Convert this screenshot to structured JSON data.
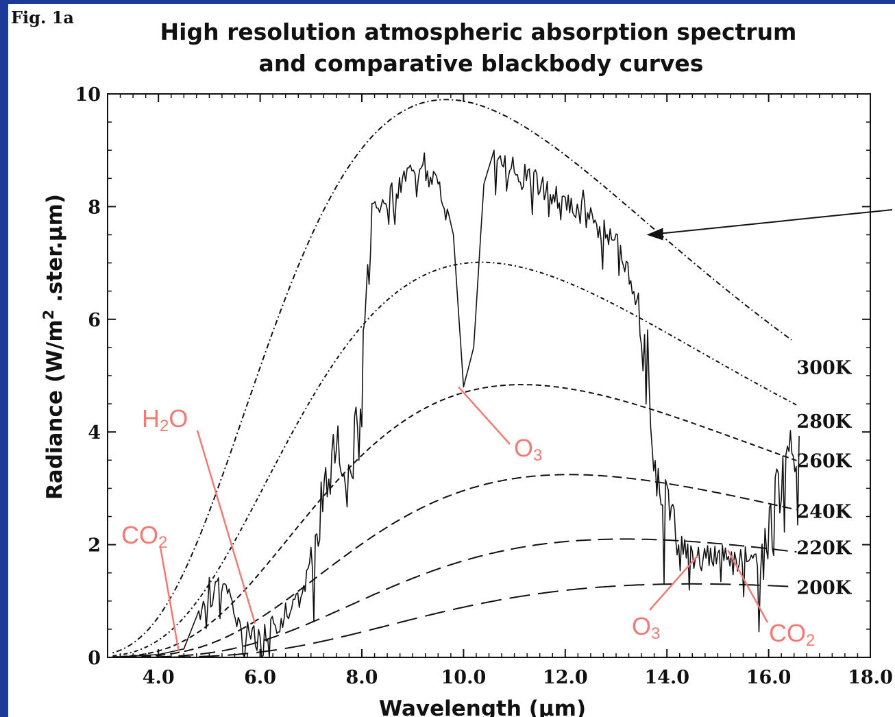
{
  "colors": {
    "background": "#1c3a9a",
    "panel": "#ffffff",
    "ink": "#111111",
    "annotation": "#f27a72"
  },
  "figure": {
    "fig_label": "Fig. 1a",
    "title_line1": "High resolution atmospheric absorption spectrum",
    "title_line2": "and comparative blackbody curves"
  },
  "chart_data": {
    "type": "line",
    "xlabel": "Wavelength (µm)",
    "ylabel": "Radiance (W/m",
    "ylabel_sup": "2",
    "ylabel_end": " .ster.µm)",
    "xlim": [
      3.0,
      18.0
    ],
    "ylim": [
      0,
      10
    ],
    "x_ticks": [
      4,
      6,
      8,
      10,
      12,
      14,
      16,
      18
    ],
    "x_tick_labels": [
      "4.0",
      "6.0",
      "8.0",
      "10.0",
      "12.0",
      "14.0",
      "16.0",
      "18.0"
    ],
    "y_ticks": [
      0,
      2,
      4,
      6,
      8,
      10
    ],
    "y_tick_labels": [
      "0",
      "2",
      "4",
      "6",
      "8",
      "10"
    ],
    "grid": false,
    "blackbody_curves": [
      {
        "temperature_K": 300,
        "label": "300K",
        "x_end": 16.5
      },
      {
        "temperature_K": 280,
        "label": "280K",
        "x_end": 16.6
      },
      {
        "temperature_K": 260,
        "label": "260K",
        "x_end": 16.6
      },
      {
        "temperature_K": 240,
        "label": "240K",
        "x_end": 16.6
      },
      {
        "temperature_K": 220,
        "label": "220K",
        "x_end": 16.6
      },
      {
        "temperature_K": 200,
        "label": "200K",
        "x_end": 16.6
      }
    ],
    "measured_spectrum": {
      "x": [
        3.0,
        4.0,
        4.5,
        5.0,
        5.3,
        5.6,
        6.0,
        6.3,
        6.5,
        6.8,
        7.0,
        7.2,
        7.5,
        7.8,
        8.0,
        8.2,
        8.5,
        8.8,
        9.2,
        9.5,
        9.8,
        10.0,
        10.2,
        10.4,
        10.6,
        11.0,
        11.5,
        12.0,
        12.5,
        13.0,
        13.2,
        13.5,
        13.8,
        14.0,
        14.2,
        14.5,
        14.8,
        15.0,
        15.3,
        15.6,
        15.9,
        16.1,
        16.4,
        16.6
      ],
      "y": [
        0.0,
        0.05,
        0.15,
        1.3,
        1.6,
        0.8,
        0.5,
        0.8,
        1.0,
        1.2,
        2.0,
        3.2,
        4.3,
        3.8,
        5.5,
        8.1,
        8.3,
        8.7,
        8.8,
        8.7,
        7.5,
        4.8,
        5.5,
        8.4,
        9.0,
        8.9,
        8.6,
        8.3,
        8.0,
        7.6,
        7.2,
        6.3,
        3.8,
        3.3,
        2.4,
        2.0,
        2.0,
        2.1,
        1.9,
        2.0,
        2.3,
        3.3,
        3.8,
        3.7
      ]
    },
    "annotations": [
      {
        "text": "CO2",
        "base": "CO",
        "sub": "2",
        "points_to_x": 4.4,
        "points_to_y": 0.1
      },
      {
        "text": "H2O",
        "base": "H",
        "sub": "2",
        "tail": "O",
        "points_to_x": 5.9,
        "points_to_y": 0.6
      },
      {
        "text": "O3",
        "base": "O",
        "sub": "3",
        "points_to_x": 9.9,
        "points_to_y": 4.8
      },
      {
        "text": "O3",
        "base": "O",
        "sub": "3",
        "points_to_x": 14.6,
        "points_to_y": 1.8
      },
      {
        "text": "CO2",
        "base": "CO",
        "sub": "2",
        "points_to_x": 15.2,
        "points_to_y": 1.9
      }
    ],
    "arrow": {
      "points_to_x": 13.6,
      "points_to_y": 7.5
    }
  }
}
